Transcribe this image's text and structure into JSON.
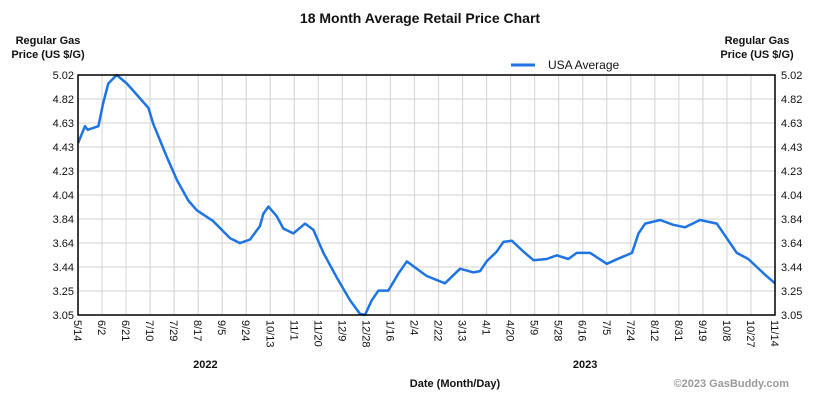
{
  "chart_data": {
    "type": "line",
    "title": "18 Month Average Retail Price Chart",
    "ylabel_left": [
      "Regular Gas",
      "Price (US $/G)"
    ],
    "ylabel_right": [
      "Regular Gas",
      "Price (US $/G)"
    ],
    "xlabel": "Date (Month/Day)",
    "year_labels": [
      {
        "label": "2022",
        "at_tick": 5.3
      },
      {
        "label": "2023",
        "at_tick": 21.1
      }
    ],
    "copyright": "©2023 GasBuddy.com",
    "ylim": [
      3.05,
      5.02
    ],
    "yticks": [
      "5.02",
      "4.82",
      "4.63",
      "4.43",
      "4.23",
      "4.04",
      "3.84",
      "3.64",
      "3.44",
      "3.25",
      "3.05"
    ],
    "xticks": [
      "5/14",
      "6/2",
      "6/21",
      "7/10",
      "7/29",
      "8/17",
      "9/5",
      "9/24",
      "10/13",
      "11/1",
      "11/20",
      "12/9",
      "12/28",
      "1/16",
      "2/4",
      "2/22",
      "3/13",
      "4/1",
      "4/20",
      "5/9",
      "5/28",
      "6/16",
      "7/5",
      "7/24",
      "8/12",
      "8/31",
      "9/19",
      "10/8",
      "10/27",
      "11/14"
    ],
    "grid": true,
    "legend": {
      "position": "top-center",
      "entries": [
        "USA Average"
      ]
    },
    "colors": {
      "line": "#1e74e3",
      "grid": "#d9d9d9",
      "copyright": "#9a9a9a"
    },
    "series": [
      {
        "name": "USA Average",
        "x_tick_index": [
          0,
          0.29,
          0.4,
          0.85,
          1.05,
          1.26,
          1.61,
          2.03,
          2.44,
          2.93,
          3.13,
          3.69,
          4.11,
          4.59,
          4.94,
          5.63,
          6.33,
          6.74,
          7.16,
          7.57,
          7.71,
          7.92,
          8.27,
          8.54,
          8.96,
          9.45,
          9.79,
          10.21,
          10.76,
          11.32,
          11.73,
          11.94,
          12.22,
          12.5,
          12.91,
          13.33,
          13.68,
          14.16,
          14.51,
          15.27,
          15.9,
          16.45,
          16.73,
          17.0,
          17.42,
          17.7,
          18.05,
          18.53,
          18.95,
          19.5,
          19.92,
          20.4,
          20.75,
          21.31,
          22.0,
          22.57,
          23.05,
          23.32,
          23.6,
          24.22,
          24.77,
          25.26,
          25.88,
          26.58,
          27.41,
          27.89,
          28.59,
          29.0
        ],
        "values": [
          4.46,
          4.6,
          4.57,
          4.6,
          4.79,
          4.95,
          5.02,
          4.95,
          4.86,
          4.75,
          4.62,
          4.35,
          4.16,
          3.99,
          3.91,
          3.82,
          3.68,
          3.64,
          3.67,
          3.78,
          3.88,
          3.94,
          3.86,
          3.76,
          3.72,
          3.8,
          3.75,
          3.56,
          3.36,
          3.17,
          3.06,
          3.05,
          3.17,
          3.25,
          3.25,
          3.39,
          3.49,
          3.42,
          3.37,
          3.31,
          3.43,
          3.4,
          3.41,
          3.49,
          3.57,
          3.65,
          3.66,
          3.57,
          3.5,
          3.51,
          3.54,
          3.51,
          3.56,
          3.56,
          3.47,
          3.52,
          3.56,
          3.72,
          3.8,
          3.83,
          3.79,
          3.77,
          3.83,
          3.8,
          3.56,
          3.51,
          3.38,
          3.31
        ]
      }
    ]
  }
}
